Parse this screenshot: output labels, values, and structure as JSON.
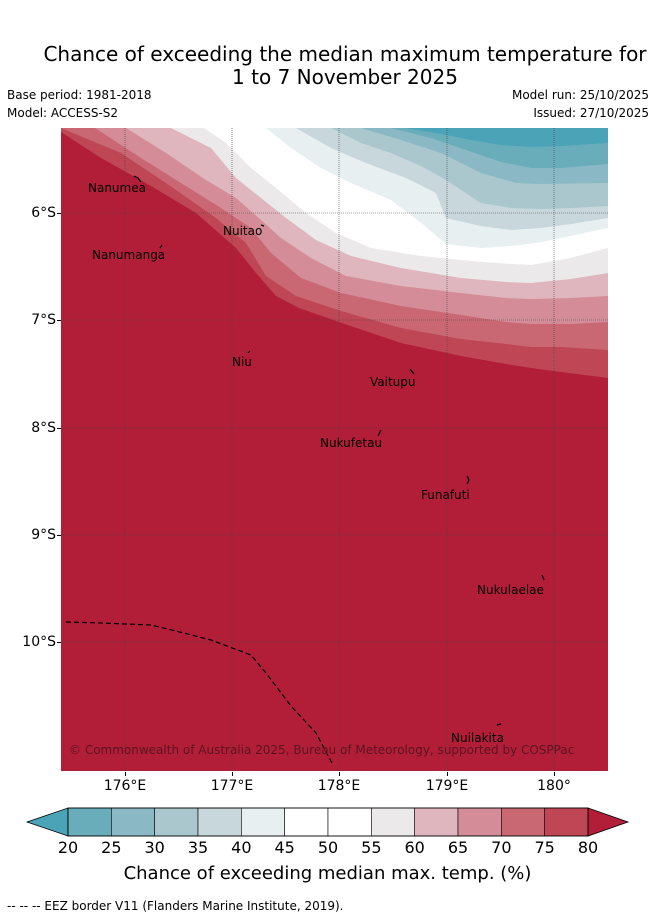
{
  "title": {
    "line1": "Chance of exceeding the median maximum temperature for",
    "line2": "1 to 7 November 2025"
  },
  "meta": {
    "base_period": "Base period: 1981-2018",
    "model": "Model: ACCESS-S2",
    "model_run": "Model run: 25/10/2025",
    "issued": "Issued: 27/10/2025"
  },
  "map": {
    "background_color": "#b21e38",
    "latitude_labels": [
      "6°S",
      "7°S",
      "8°S",
      "9°S",
      "10°S"
    ],
    "longitude_labels": [
      "176°E",
      "177°E",
      "178°E",
      "179°E",
      "180°"
    ],
    "places": [
      {
        "name": "Nanumea"
      },
      {
        "name": "Nuitao"
      },
      {
        "name": "Nanumanga"
      },
      {
        "name": "Niu"
      },
      {
        "name": "Vaitupu"
      },
      {
        "name": "Nukufetau"
      },
      {
        "name": "Funafuti"
      },
      {
        "name": "Nukulaelae"
      },
      {
        "name": "Nuilakita"
      }
    ],
    "copyright": "© Commonwealth of Australia 2025, Bureau of Meteorology, supported by COSPPac"
  },
  "colorbar": {
    "ticks": [
      "20",
      "25",
      "30",
      "35",
      "40",
      "45",
      "50",
      "55",
      "60",
      "65",
      "70",
      "75",
      "80"
    ],
    "under_color": "#4aa3b6",
    "over_color": "#b21e38",
    "colors": [
      "#69adbb",
      "#8ab9c5",
      "#a9c7cd",
      "#c7d7dc",
      "#e8eff1",
      "#ffffff",
      "#ffffff",
      "#ebe9e9",
      "#dfb6bd",
      "#d48d98",
      "#c96873",
      "#bf4655"
    ],
    "label": "Chance of exceeding median max. temp. (%)"
  },
  "footer": "--  --  -- EEZ border V11 (Flanders Marine Institute, 2019)."
}
